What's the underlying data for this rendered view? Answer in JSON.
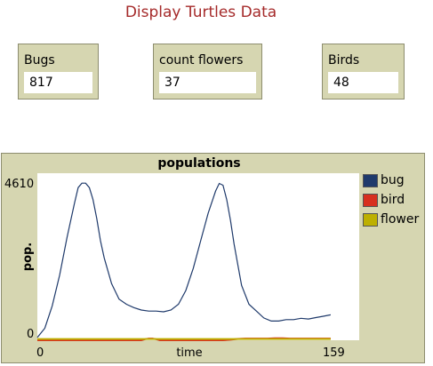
{
  "page": {
    "title": "Display Turtles Data"
  },
  "monitors": [
    {
      "label": "Bugs",
      "value": "817"
    },
    {
      "label": "count flowers",
      "value": "37"
    },
    {
      "label": "Birds",
      "value": "48"
    }
  ],
  "chart_data": {
    "type": "line",
    "title": "populations",
    "xlabel": "time",
    "ylabel": "pop.",
    "xlim": [
      0,
      159
    ],
    "ylim": [
      0,
      4610
    ],
    "x_tick_labels": [
      "0",
      "159"
    ],
    "y_tick_labels": [
      "0",
      "4610"
    ],
    "legend_position": "right",
    "series": [
      {
        "name": "bug",
        "color": "#1f3a6b",
        "x": [
          0,
          4,
          8,
          12,
          16,
          20,
          22,
          24,
          26,
          28,
          30,
          32,
          34,
          36,
          40,
          44,
          48,
          52,
          56,
          60,
          64,
          68,
          72,
          76,
          80,
          84,
          88,
          92,
          96,
          98,
          100,
          102,
          104,
          106,
          108,
          110,
          114,
          118,
          122,
          126,
          130,
          134,
          138,
          142,
          146,
          150,
          154,
          158
        ],
        "y": [
          80,
          350,
          1000,
          1900,
          3000,
          4000,
          4450,
          4580,
          4580,
          4450,
          4100,
          3550,
          2900,
          2400,
          1650,
          1200,
          1050,
          950,
          880,
          850,
          850,
          830,
          880,
          1050,
          1450,
          2100,
          2900,
          3700,
          4350,
          4570,
          4520,
          4100,
          3500,
          2800,
          2200,
          1600,
          1050,
          850,
          650,
          560,
          560,
          600,
          600,
          640,
          620,
          660,
          700,
          740
        ]
      },
      {
        "name": "bird",
        "color": "#d7301f",
        "x": [
          0,
          20,
          40,
          56,
          58,
          60,
          62,
          64,
          66,
          70,
          90,
          100,
          104,
          108,
          112,
          116,
          120,
          124,
          128,
          132,
          136,
          140,
          144,
          148,
          152,
          158
        ],
        "y": [
          0,
          0,
          0,
          0,
          30,
          48,
          48,
          30,
          0,
          0,
          0,
          0,
          15,
          40,
          48,
          48,
          48,
          48,
          60,
          60,
          48,
          48,
          48,
          48,
          48,
          48
        ]
      },
      {
        "name": "flower",
        "color": "#bdb000",
        "x": [
          0,
          40,
          80,
          120,
          158
        ],
        "y": [
          37,
          37,
          37,
          37,
          37
        ]
      }
    ]
  }
}
